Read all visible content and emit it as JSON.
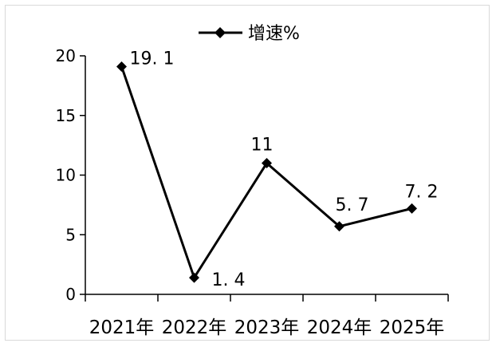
{
  "chart_data": {
    "type": "line",
    "categories": [
      "2021年",
      "2022年",
      "2023年",
      "2024年",
      "2025年"
    ],
    "series": [
      {
        "name": "增速%",
        "values": [
          19.1,
          1.4,
          11,
          5.7,
          7.2
        ],
        "data_labels": [
          "19. 1",
          "1. 4",
          "11",
          "5. 7",
          "7. 2"
        ]
      }
    ],
    "ylim": [
      0,
      20
    ],
    "yticks": [
      0,
      5,
      10,
      15,
      20
    ],
    "legend_position": "top",
    "grid": false,
    "colors": {
      "line": "#000000",
      "axis": "#000000",
      "frame": "#d9d9d9"
    }
  }
}
